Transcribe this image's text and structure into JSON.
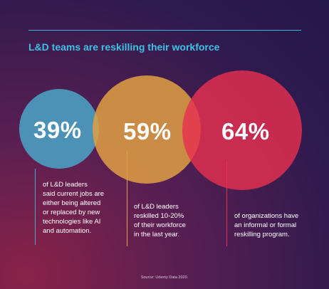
{
  "title": "L&D teams are reskilling their workforce",
  "stats": [
    {
      "value": "39%",
      "lines": [
        "of L&D leaders",
        "said current jobs are",
        "either being altered",
        "or replaced by new",
        "technologies like AI",
        "and automation."
      ],
      "color": "#4aa7c8"
    },
    {
      "value": "59%",
      "lines": [
        "of L&D leaders",
        "reskilled 10-20%",
        "of their workforce",
        "in the last year."
      ],
      "color": "#e0a043"
    },
    {
      "value": "64%",
      "lines": [
        "of organizations have",
        "an informal or formal",
        "reskilling program."
      ],
      "color": "#e7304f"
    }
  ],
  "source": "Source: Udemy Data 2020."
}
